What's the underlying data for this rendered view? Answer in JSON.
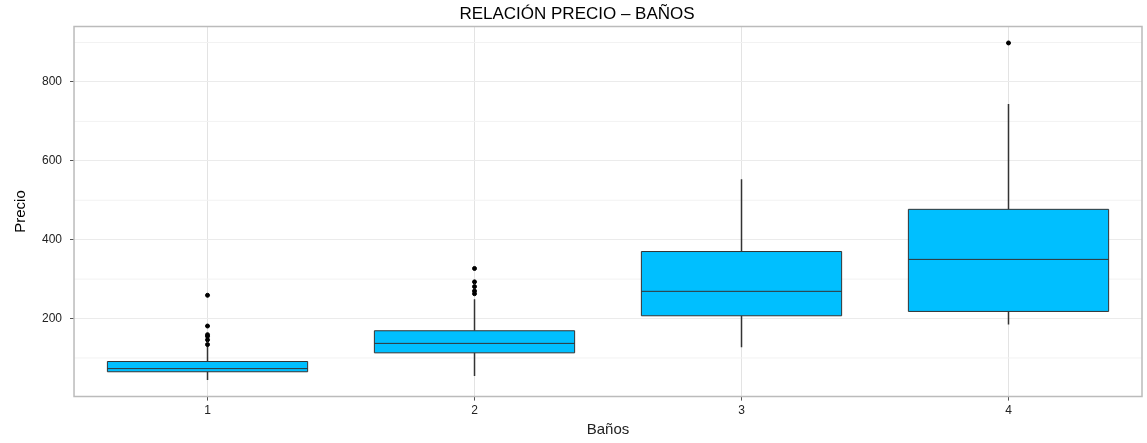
{
  "chart_data": {
    "type": "box",
    "title": "RELACIÓN PRECIO – BAÑOS",
    "xlabel": "Baños",
    "ylabel": "Precio",
    "categories": [
      "1",
      "2",
      "3",
      "4"
    ],
    "color": "#00bfff",
    "boxes": [
      {
        "low": 44,
        "q1": 65,
        "median": 73,
        "q3": 91,
        "high": 130,
        "outliers": [
          134,
          146,
          155,
          159,
          181,
          259
        ]
      },
      {
        "low": 54,
        "q1": 113,
        "median": 137,
        "q3": 169,
        "high": 249,
        "outliers": [
          263,
          270,
          281,
          293,
          327
        ]
      },
      {
        "low": 127,
        "q1": 207,
        "median": 269,
        "q3": 370,
        "high": 553
      },
      {
        "low": 185,
        "q1": 218,
        "median": 350,
        "q3": 477,
        "high": 744,
        "outliers": [
          899
        ]
      }
    ],
    "ylim": [
      2,
      941
    ],
    "yticks": [
      200,
      400,
      600,
      800
    ],
    "grid": true
  }
}
